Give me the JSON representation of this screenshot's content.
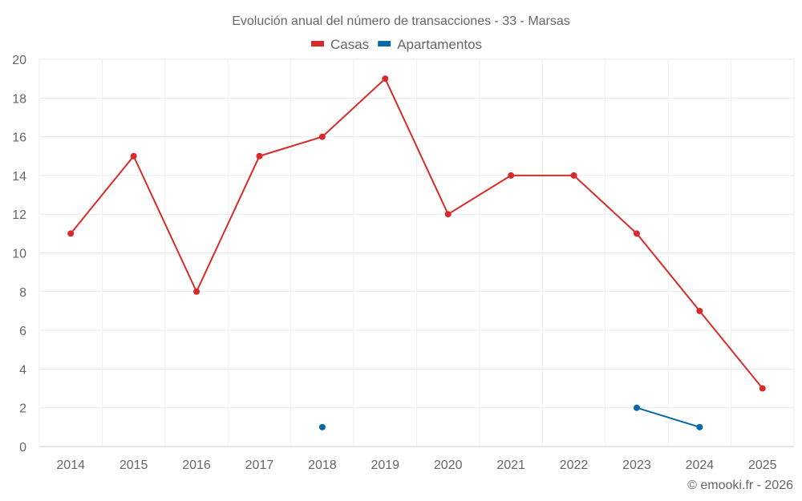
{
  "chart_data": {
    "type": "line",
    "title": "Evolución anual del número de transacciones - 33 - Marsas",
    "categories": [
      "2014",
      "2015",
      "2016",
      "2017",
      "2018",
      "2019",
      "2020",
      "2021",
      "2022",
      "2023",
      "2024",
      "2025"
    ],
    "series": [
      {
        "name": "Casas",
        "color": "#d92a2a",
        "values": [
          11,
          15,
          8,
          15,
          16,
          19,
          12,
          14,
          14,
          11,
          7,
          3
        ]
      },
      {
        "name": "Apartamentos",
        "color": "#0867a6",
        "values": [
          null,
          null,
          null,
          null,
          1,
          null,
          null,
          null,
          null,
          2,
          1,
          null
        ]
      }
    ],
    "ylim": [
      0,
      20
    ],
    "yticks": [
      0,
      2,
      4,
      6,
      8,
      10,
      12,
      14,
      16,
      18,
      20
    ],
    "xlabel": "",
    "ylabel": "",
    "grid": true,
    "legend_position": "top-center",
    "credit": "© emooki.fr - 2026"
  }
}
